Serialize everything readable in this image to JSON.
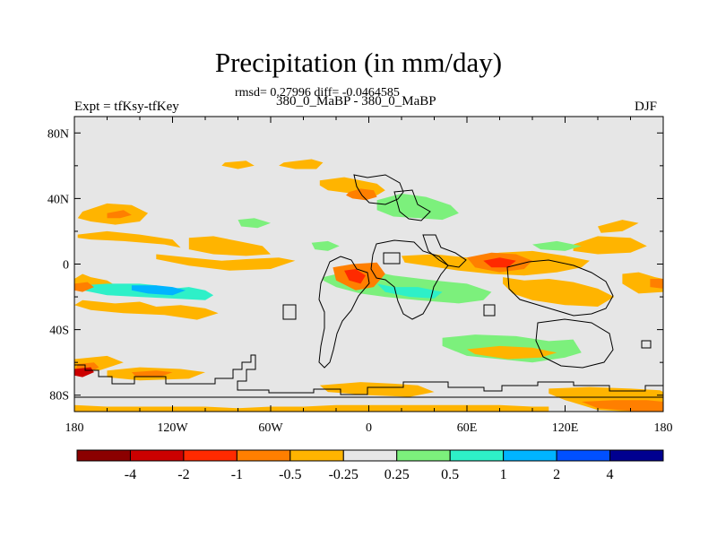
{
  "title": "Precipitation (in mm/day)",
  "stats": "rmsd= 0.27996 diff= -0.0464585",
  "experiment": "Expt = tfKsy-tfKey",
  "subtitle": "380_0_MaBP - 380_0_MaBP",
  "season": "DJF",
  "chart_data": {
    "type": "heatmap",
    "title": "Precipitation (in mm/day)",
    "x_range": [
      -180,
      180
    ],
    "y_range": [
      -90,
      90
    ],
    "x_ticks": [
      {
        "value": -180,
        "label": "180"
      },
      {
        "value": -120,
        "label": "120W"
      },
      {
        "value": -60,
        "label": "60W"
      },
      {
        "value": 0,
        "label": "0"
      },
      {
        "value": 60,
        "label": "60E"
      },
      {
        "value": 120,
        "label": "120E"
      },
      {
        "value": 180,
        "label": "180"
      }
    ],
    "y_ticks": [
      {
        "value": 80,
        "label": "80N"
      },
      {
        "value": 40,
        "label": "40N"
      },
      {
        "value": 0,
        "label": "0"
      },
      {
        "value": -40,
        "label": "40S"
      },
      {
        "value": -80,
        "label": "80S"
      }
    ],
    "colorbar": {
      "colors": [
        "#8b0000",
        "#cc0000",
        "#ff2a00",
        "#ff7f00",
        "#ffb400",
        "#e6e6e6",
        "#7cf07c",
        "#2ef0c8",
        "#00b4ff",
        "#0050ff",
        "#000090"
      ],
      "labels": [
        "-4",
        "-2",
        "-1",
        "-0.5",
        "-0.25",
        "0.25",
        "0.5",
        "1",
        "2",
        "4"
      ]
    },
    "anomaly_regions": [
      {
        "lon": [
          -180,
          -175,
          -170,
          -160,
          -155,
          -160,
          -170,
          -180
        ],
        "lat": [
          -9,
          -6,
          -8,
          -10,
          -13,
          -18,
          -16,
          -14
        ],
        "color": "#ffb400"
      },
      {
        "lon": [
          -175,
          -160,
          -140,
          -130,
          -120,
          -110,
          -100,
          -95,
          -100,
          -120,
          -140,
          -160,
          -175
        ],
        "lat": [
          -13,
          -12,
          -12,
          -13,
          -15,
          -14,
          -16,
          -19,
          -22,
          -21,
          -20,
          -19,
          -16
        ],
        "color": "#2ef0c8"
      },
      {
        "lon": [
          -145,
          -130,
          -120,
          -112,
          -120,
          -135,
          -145
        ],
        "lat": [
          -13,
          -13,
          -14,
          -16,
          -19,
          -18,
          -16
        ],
        "color": "#00b4ff"
      },
      {
        "lon": [
          -180,
          -172,
          -168,
          -175,
          -180
        ],
        "lat": [
          -12,
          -11,
          -14,
          -17,
          -16
        ],
        "color": "#ff7f00"
      },
      {
        "lon": [
          -175,
          -155,
          -140,
          -130,
          -115,
          -100,
          -92,
          -105,
          -125,
          -150,
          -170,
          -180
        ],
        "lat": [
          -22,
          -24,
          -23,
          -26,
          -25,
          -27,
          -30,
          -34,
          -31,
          -30,
          -28,
          -25
        ],
        "color": "#ffb400"
      },
      {
        "lon": [
          -175,
          -160,
          -145,
          -135,
          -140,
          -155,
          -170,
          -178
        ],
        "lat": [
          32,
          37,
          36,
          31,
          26,
          24,
          26,
          28
        ],
        "color": "#ffb400"
      },
      {
        "lon": [
          -160,
          -150,
          -145,
          -152,
          -160
        ],
        "lat": [
          31,
          33,
          30,
          28,
          28
        ],
        "color": "#ff7f00"
      },
      {
        "lon": [
          -178,
          -160,
          -140,
          -120,
          -115,
          -125,
          -150,
          -170,
          -178
        ],
        "lat": [
          18,
          20,
          18,
          15,
          10,
          12,
          14,
          15,
          16
        ],
        "color": "#ffb400"
      },
      {
        "lon": [
          -110,
          -95,
          -80,
          -65,
          -60,
          -75,
          -95,
          -110
        ],
        "lat": [
          16,
          17,
          14,
          11,
          6,
          5,
          6,
          9
        ],
        "color": "#ffb400"
      },
      {
        "lon": [
          -130,
          -110,
          -90,
          -75,
          -55,
          -45,
          -60,
          -85,
          -110,
          -130
        ],
        "lat": [
          6,
          4,
          2,
          3,
          4,
          2,
          -3,
          -4,
          -1,
          3
        ],
        "color": "#ffb400"
      },
      {
        "lon": [
          -88,
          -75,
          -70,
          -80,
          -90
        ],
        "lat": [
          62,
          63,
          60,
          58,
          60
        ],
        "color": "#ffb400"
      },
      {
        "lon": [
          -52,
          -35,
          -28,
          -32,
          -45,
          -55
        ],
        "lat": [
          62,
          64,
          62,
          58,
          58,
          60
        ],
        "color": "#ffb400"
      },
      {
        "lon": [
          -30,
          -15,
          -5,
          5,
          10,
          5,
          -10,
          -25,
          -30
        ],
        "lat": [
          51,
          53,
          51,
          49,
          45,
          42,
          43,
          45,
          48
        ],
        "color": "#ffb400"
      },
      {
        "lon": [
          -12,
          -5,
          3,
          5,
          -2,
          -10,
          -14
        ],
        "lat": [
          44,
          46,
          45,
          41,
          39,
          40,
          42
        ],
        "color": "#ff7f00"
      },
      {
        "lon": [
          5,
          20,
          35,
          50,
          55,
          45,
          30,
          15,
          5
        ],
        "lat": [
          39,
          43,
          41,
          36,
          31,
          27,
          28,
          29,
          33
        ],
        "color": "#7cf07c"
      },
      {
        "lon": [
          45,
          65,
          90,
          110,
          125,
          130,
          120,
          100,
          80,
          60,
          45
        ],
        "lat": [
          -45,
          -43,
          -44,
          -47,
          -46,
          -54,
          -57,
          -60,
          -58,
          -56,
          -50
        ],
        "color": "#7cf07c"
      },
      {
        "lon": [
          60,
          80,
          100,
          115,
          105,
          85,
          65
        ],
        "lat": [
          -52,
          -50,
          -51,
          -54,
          -57,
          -58,
          -55
        ],
        "color": "#ffb400"
      },
      {
        "lon": [
          -28,
          -15,
          0,
          15,
          40,
          60,
          75,
          70,
          55,
          30,
          10,
          -5,
          -20,
          -28
        ],
        "lat": [
          -8,
          -5,
          -4,
          -7,
          -10,
          -12,
          -17,
          -22,
          -24,
          -22,
          -20,
          -18,
          -14,
          -10
        ],
        "color": "#7cf07c"
      },
      {
        "lon": [
          5,
          15,
          30,
          45,
          40,
          25,
          10
        ],
        "lat": [
          -12,
          -14,
          -14,
          -17,
          -21,
          -20,
          -17
        ],
        "color": "#2ef0c8"
      },
      {
        "lon": [
          -22,
          -10,
          5,
          10,
          3,
          -8,
          -20
        ],
        "lat": [
          -2,
          0,
          1,
          -6,
          -14,
          -16,
          -10
        ],
        "color": "#ff7f00"
      },
      {
        "lon": [
          -15,
          -8,
          -2,
          -5,
          -12
        ],
        "lat": [
          -4,
          -3,
          -7,
          -12,
          -10
        ],
        "color": "#ff2a00"
      },
      {
        "lon": [
          20,
          40,
          60,
          80,
          100,
          120,
          135,
          130,
          115,
          95,
          75,
          55,
          35,
          22
        ],
        "lat": [
          5,
          6,
          4,
          7,
          8,
          5,
          2,
          -2,
          -5,
          -7,
          -6,
          -4,
          -1,
          1
        ],
        "color": "#ffb400"
      },
      {
        "lon": [
          60,
          75,
          90,
          100,
          95,
          80,
          65
        ],
        "lat": [
          4,
          7,
          6,
          2,
          -3,
          -5,
          -2
        ],
        "color": "#ff7f00"
      },
      {
        "lon": [
          70,
          80,
          90,
          85,
          75
        ],
        "lat": [
          2,
          4,
          2,
          -2,
          -2
        ],
        "color": "#ff2a00"
      },
      {
        "lon": [
          82,
          95,
          110,
          125,
          140,
          150,
          140,
          120,
          100,
          88,
          82
        ],
        "lat": [
          -8,
          -10,
          -9,
          -11,
          -15,
          -20,
          -26,
          -25,
          -22,
          -18,
          -12
        ],
        "color": "#ffb400"
      },
      {
        "lon": [
          110,
          135,
          160,
          178,
          180,
          180,
          160,
          140,
          120,
          110
        ],
        "lat": [
          -76,
          -75,
          -76,
          -77,
          -78,
          -90,
          -90,
          -89,
          -83,
          -79
        ],
        "color": "#ffb400"
      },
      {
        "lon": [
          130,
          150,
          170,
          180,
          180,
          165,
          140
        ],
        "lat": [
          -84,
          -83,
          -83,
          -84,
          -90,
          -90,
          -88
        ],
        "color": "#ff7f00"
      },
      {
        "lon": [
          -30,
          -5,
          15,
          30,
          40,
          25,
          0,
          -25
        ],
        "lat": [
          -74,
          -72,
          -73,
          -74,
          -78,
          -81,
          -80,
          -78
        ],
        "color": "#ffb400"
      },
      {
        "lon": [
          -180,
          -160,
          -140,
          -120,
          -100,
          -80,
          -60,
          -40,
          -20,
          0,
          20,
          40,
          60,
          80,
          100,
          110,
          110,
          -180
        ],
        "lat": [
          -86,
          -87,
          -87,
          -87,
          -87,
          -88,
          -87,
          -87,
          -86,
          -86,
          -86,
          -86,
          -86,
          -86,
          -87,
          -87,
          -90,
          -90
        ],
        "color": "#ffb400"
      },
      {
        "lon": [
          -180,
          -160,
          -150,
          -165,
          -180
        ],
        "lat": [
          -58,
          -56,
          -60,
          -65,
          -64
        ],
        "color": "#ffb400"
      },
      {
        "lon": [
          -178,
          -168,
          -165,
          -172,
          -180
        ],
        "lat": [
          -61,
          -60,
          -63,
          -67,
          -66
        ],
        "color": "#ff7f00"
      },
      {
        "lon": [
          -180,
          -170,
          -168,
          -175,
          -180
        ],
        "lat": [
          -64,
          -63,
          -66,
          -69,
          -68
        ],
        "color": "#cc0000"
      },
      {
        "lon": [
          -160,
          -140,
          -115,
          -100,
          -110,
          -140,
          -160
        ],
        "lat": [
          -65,
          -63,
          -64,
          -66,
          -70,
          -71,
          -69
        ],
        "color": "#ffb400"
      },
      {
        "lon": [
          -145,
          -130,
          -120,
          -128,
          -142
        ],
        "lat": [
          -66,
          -65,
          -66,
          -69,
          -69
        ],
        "color": "#ff7f00"
      },
      {
        "lon": [
          155,
          165,
          175,
          180,
          180,
          165,
          155
        ],
        "lat": [
          -6,
          -5,
          -8,
          -9,
          -17,
          -18,
          -12
        ],
        "color": "#ffb400"
      },
      {
        "lon": [
          172,
          180,
          180,
          172
        ],
        "lat": [
          -9,
          -9,
          -15,
          -14
        ],
        "color": "#ff7f00"
      },
      {
        "lon": [
          125,
          140,
          160,
          170,
          160,
          140,
          125
        ],
        "lat": [
          12,
          17,
          16,
          11,
          7,
          6,
          8
        ],
        "color": "#ffb400"
      },
      {
        "lon": [
          140,
          155,
          165,
          155,
          142
        ],
        "lat": [
          23,
          27,
          25,
          20,
          19
        ],
        "color": "#ffb400"
      },
      {
        "lon": [
          100,
          115,
          130,
          120,
          105
        ],
        "lat": [
          12,
          14,
          11,
          8,
          9
        ],
        "color": "#7cf07c"
      },
      {
        "lon": [
          -80,
          -70,
          -60,
          -68,
          -78
        ],
        "lat": [
          27,
          28,
          25,
          22,
          23
        ],
        "color": "#7cf07c"
      },
      {
        "lon": [
          -35,
          -25,
          -18,
          -25,
          -33
        ],
        "lat": [
          13,
          14,
          11,
          8,
          9
        ],
        "color": "#7cf07c"
      }
    ]
  }
}
